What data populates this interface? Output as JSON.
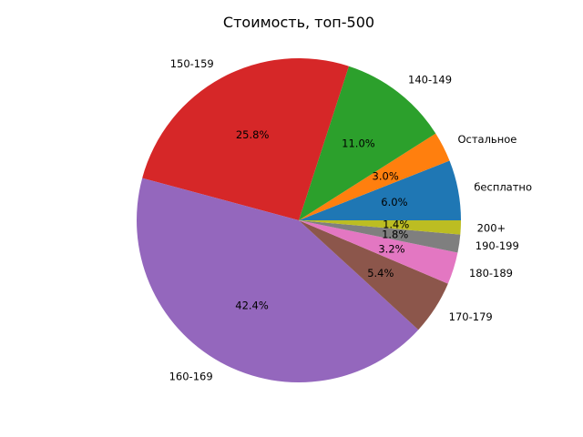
{
  "chart_data": {
    "type": "pie",
    "title": "Стоимость, топ-500",
    "start_angle_deg": 0,
    "direction": "counterclockwise",
    "slices": [
      {
        "label": "бесплатно",
        "value": 6.0,
        "pct_label": "6.0%",
        "color": "#1f77b4"
      },
      {
        "label": "Остальное",
        "value": 3.0,
        "pct_label": "3.0%",
        "color": "#ff7f0e"
      },
      {
        "label": "140-149",
        "value": 11.0,
        "pct_label": "11.0%",
        "color": "#2ca02c"
      },
      {
        "label": "150-159",
        "value": 25.8,
        "pct_label": "25.8%",
        "color": "#d62728"
      },
      {
        "label": "160-169",
        "value": 42.4,
        "pct_label": "42.4%",
        "color": "#9467bd"
      },
      {
        "label": "170-179",
        "value": 5.4,
        "pct_label": "5.4%",
        "color": "#8c564b"
      },
      {
        "label": "180-189",
        "value": 3.2,
        "pct_label": "3.2%",
        "color": "#e377c2"
      },
      {
        "label": "190-199",
        "value": 1.8,
        "pct_label": "1.8%",
        "color": "#7f7f7f"
      },
      {
        "label": "200+",
        "value": 1.4,
        "pct_label": "1.4%",
        "color": "#bcbd22"
      }
    ]
  }
}
